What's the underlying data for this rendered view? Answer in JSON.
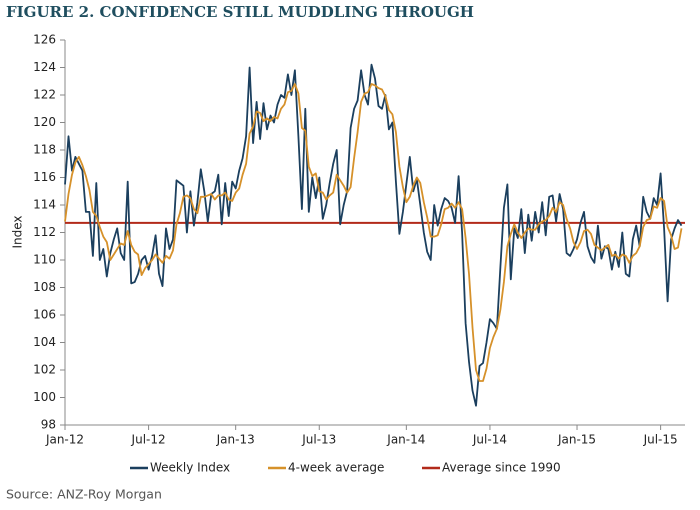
{
  "chart_data": {
    "type": "line",
    "title": "FIGURE 2. CONFIDENCE STILL MUDDLING THROUGH",
    "ylabel": "Index",
    "source": "Source: ANZ-Roy Morgan",
    "xlim": [
      0,
      178
    ],
    "xticks": [
      {
        "value": 0,
        "label": "Jan-12"
      },
      {
        "value": 24,
        "label": "Jul-12"
      },
      {
        "value": 49,
        "label": "Jan-13"
      },
      {
        "value": 73,
        "label": "Jul-13"
      },
      {
        "value": 98,
        "label": "Jan-14"
      },
      {
        "value": 122,
        "label": "Jul-14"
      },
      {
        "value": 147,
        "label": "Jan-15"
      },
      {
        "value": 171,
        "label": "Jul-15"
      }
    ],
    "ylim": [
      98,
      126
    ],
    "yticks": [
      98,
      100,
      102,
      104,
      106,
      108,
      110,
      112,
      114,
      116,
      118,
      120,
      122,
      124,
      126
    ],
    "series": [
      {
        "name": "Weekly Index",
        "color": "#1b3f5e",
        "values": [
          115.5,
          119,
          116.5,
          117.5,
          117,
          116.5,
          113.5,
          113.5,
          110.3,
          115.6,
          110,
          110.8,
          108.8,
          110.5,
          111.5,
          112.3,
          110.5,
          110,
          115.7,
          108.3,
          108.4,
          109,
          110,
          110.3,
          109.3,
          110.3,
          111.8,
          109,
          108.1,
          112.3,
          110.8,
          111.5,
          115.8,
          115.6,
          115.4,
          112,
          115,
          112.5,
          114.2,
          116.6,
          115,
          112.8,
          114.8,
          115,
          116.2,
          112.6,
          115.6,
          113.2,
          115.7,
          115.2,
          116.5,
          117.4,
          119,
          124,
          118.5,
          121.5,
          118.8,
          121.4,
          119.5,
          120.5,
          120,
          121.3,
          122,
          121.8,
          123.5,
          122,
          123.8,
          119,
          113.7,
          121,
          113.5,
          116,
          114.5,
          116,
          113,
          114,
          115.6,
          117,
          118,
          112.6,
          114,
          115,
          119.6,
          121,
          121.6,
          123.8,
          122,
          121.3,
          124.2,
          123.2,
          121.2,
          121,
          122,
          119.5,
          120,
          115.7,
          111.9,
          113.5,
          115.5,
          117.5,
          115,
          115.9,
          114,
          112,
          110.6,
          110,
          114,
          112.5,
          113.7,
          114.5,
          114.3,
          113.8,
          112.7,
          116.1,
          112,
          105.4,
          102.6,
          100.5,
          99.4,
          102.3,
          102.5,
          104,
          105.7,
          105.4,
          105,
          109.5,
          113.8,
          115.5,
          108.6,
          112.3,
          111.6,
          113.7,
          110.5,
          113.3,
          111.4,
          113.5,
          112,
          114.2,
          111.8,
          114.6,
          114.7,
          112.8,
          114.8,
          113.7,
          110.5,
          110.3,
          110.8,
          111.5,
          112.7,
          113.5,
          111,
          110.2,
          109.8,
          112.5,
          110.1,
          111,
          110.8,
          109.3,
          110.6,
          109.5,
          112,
          109,
          108.8,
          111.5,
          112.5,
          111,
          114.6,
          113.5,
          113,
          114.5,
          114,
          116.3,
          112.3,
          107,
          111.5,
          112.3,
          112.9,
          112.5
        ]
      },
      {
        "name": "4-week average",
        "color": "#d6912a",
        "values": [
          112.8,
          114.8,
          116.2,
          117.1,
          117.5,
          116.9,
          116.1,
          115.1,
          113.5,
          113.2,
          112.4,
          111.7,
          111.3,
          110.0,
          110.4,
          110.8,
          111.2,
          111.1,
          112.1,
          111.1,
          110.6,
          110.4,
          108.9,
          109.4,
          109.7,
          110.0,
          110.4,
          110.1,
          109.8,
          110.3,
          110.1,
          110.7,
          112.6,
          113.4,
          114.6,
          114.7,
          114.5,
          113.7,
          113.4,
          114.6,
          114.6,
          114.7,
          114.8,
          114.4,
          114.7,
          114.7,
          114.9,
          114.4,
          114.3,
          114.9,
          115.2,
          116.2,
          117.0,
          119.2,
          119.7,
          120.8,
          120.7,
          120.1,
          120.3,
          120.1,
          120.4,
          120.3,
          121.0,
          121.3,
          122.2,
          122.3,
          122.8,
          122.1,
          119.6,
          119.4,
          116.8,
          116.1,
          116.3,
          115.0,
          114.9,
          114.4,
          114.7,
          114.9,
          116.2,
          115.8,
          115.4,
          114.9,
          115.3,
          117.4,
          119.3,
          121.5,
          122.1,
          122.2,
          122.8,
          122.7,
          122.5,
          122.4,
          121.9,
          120.9,
          120.6,
          119.3,
          116.8,
          115.3,
          114.2,
          114.6,
          115.4,
          116.0,
          115.6,
          114.2,
          113.1,
          111.7,
          111.7,
          111.8,
          112.6,
          113.7,
          113.8,
          114.1,
          113.8,
          114.2,
          113.7,
          111.6,
          109.0,
          105.1,
          102.0,
          101.2,
          101.2,
          102.1,
          103.6,
          104.4,
          105.0,
          106.4,
          108.4,
          111.0,
          111.9,
          112.6,
          112.0,
          111.6,
          112.0,
          112.3,
          112.2,
          112.2,
          112.6,
          112.8,
          112.9,
          113.2,
          113.8,
          113.5,
          114.2,
          114.0,
          113.0,
          112.3,
          111.3,
          110.8,
          111.3,
          112.1,
          112.2,
          111.9,
          111.1,
          110.9,
          110.7,
          110.9,
          111.1,
          110.3,
          110.4,
          110.1,
          110.4,
          110.3,
          109.8,
          110.3,
          110.5,
          111.0,
          112.4,
          112.9,
          113.0,
          113.9,
          113.8,
          114.5,
          114.3,
          112.4,
          111.8,
          110.8,
          110.9,
          112.3
        ]
      },
      {
        "name": "Average since 1990",
        "color": "#b22a1a",
        "value": 112.7
      }
    ]
  }
}
